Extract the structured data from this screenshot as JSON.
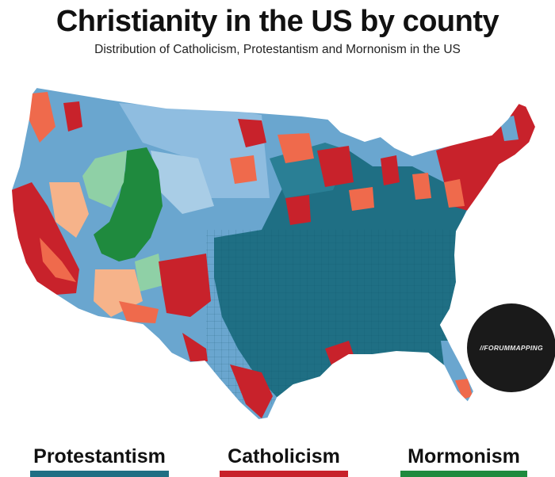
{
  "title": "Christianity in the US by county",
  "subtitle": "Distribution of Catholicism, Protestantism and Mornonism in the US",
  "watermark": "//FORUMMAPPING",
  "colors": {
    "protestant": "#1f6f84",
    "protestant_light": "#6aa6cf",
    "protestant_pale": "#a9cde6",
    "catholic": "#c8222b",
    "catholic_light": "#ef6a4c",
    "catholic_pale": "#f6b38a",
    "mormon": "#1f8a3e",
    "mormon_light": "#8fd0a6",
    "background": "#ffffff"
  },
  "legend": [
    {
      "label": "Protestantism",
      "color": "#1f6f84"
    },
    {
      "label": "Catholicism",
      "color": "#c8222b"
    },
    {
      "label": "Mormonism",
      "color": "#1f8a3e"
    }
  ]
}
